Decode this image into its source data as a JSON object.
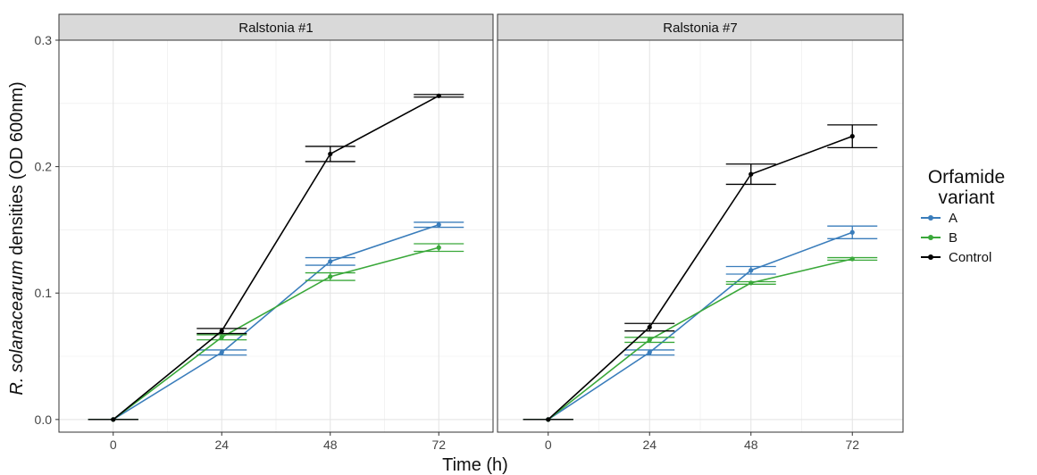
{
  "chart_data": {
    "type": "line",
    "xlabel": "Time (h)",
    "ylabel_italic": "R. solanacearum",
    "ylabel_rest": " densities (OD 600nm)",
    "x_ticks": [
      0,
      24,
      48,
      72
    ],
    "y_ticks": [
      "0.0",
      "0.1",
      "0.2",
      "0.3"
    ],
    "xlim": [
      -12,
      84
    ],
    "ylim": [
      -0.01,
      0.3
    ],
    "grid": true,
    "legend": {
      "title_line1": "Orfamide",
      "title_line2": "variant",
      "placement": "right"
    },
    "colors": {
      "A": "#3a7dbb",
      "B": "#3aa83a",
      "Control": "#000000"
    },
    "panels": [
      {
        "title": "Ralstonia #1",
        "series": [
          {
            "name": "A",
            "x": [
              0,
              24,
              48,
              72
            ],
            "y": [
              0.0,
              0.053,
              0.125,
              0.154
            ],
            "err": [
              0.0,
              0.002,
              0.003,
              0.002
            ]
          },
          {
            "name": "B",
            "x": [
              0,
              24,
              48,
              72
            ],
            "y": [
              0.0,
              0.065,
              0.113,
              0.136
            ],
            "err": [
              0.0,
              0.002,
              0.003,
              0.003
            ]
          },
          {
            "name": "Control",
            "x": [
              0,
              24,
              48,
              72
            ],
            "y": [
              0.0,
              0.07,
              0.21,
              0.256
            ],
            "err": [
              0.0,
              0.002,
              0.006,
              0.001
            ]
          }
        ]
      },
      {
        "title": "Ralstonia #7",
        "series": [
          {
            "name": "A",
            "x": [
              0,
              24,
              48,
              72
            ],
            "y": [
              0.0,
              0.053,
              0.118,
              0.148
            ],
            "err": [
              0.0,
              0.002,
              0.003,
              0.005
            ]
          },
          {
            "name": "B",
            "x": [
              0,
              24,
              48,
              72
            ],
            "y": [
              0.0,
              0.063,
              0.108,
              0.127
            ],
            "err": [
              0.0,
              0.002,
              0.001,
              0.001
            ]
          },
          {
            "name": "Control",
            "x": [
              0,
              24,
              48,
              72
            ],
            "y": [
              0.0,
              0.073,
              0.194,
              0.224
            ],
            "err": [
              0.0,
              0.003,
              0.008,
              0.009
            ]
          }
        ]
      }
    ]
  }
}
